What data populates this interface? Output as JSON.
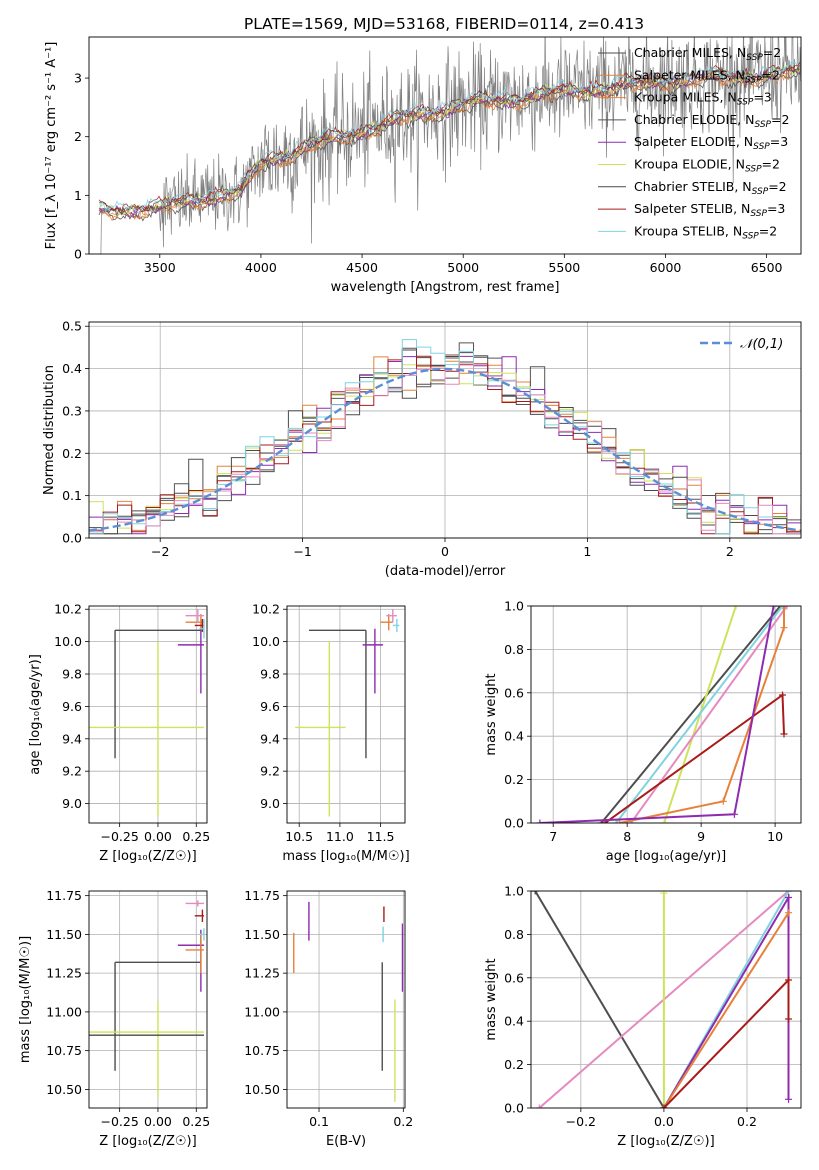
{
  "figure": {
    "title": "PLATE=1569, MJD=53168, FIBERID=0114, z=0.413"
  },
  "colors": {
    "chabrier_miles": "#4e4e4e",
    "salpeter_miles": "#e6813a",
    "kroupa_miles": "#e6813a",
    "chabrier_elodie": "#555555",
    "salpeter_elodie": "#8e2bb0",
    "kroupa_elodie": "#cde35a",
    "chabrier_stelib": "#4a4a4a",
    "salpeter_stelib": "#a91b1b",
    "kroupa_stelib": "#7fd3e0",
    "data": "#808080",
    "normal": "#5a8fd6",
    "pink": "#e58ac0"
  },
  "chart_data": [
    {
      "id": "spectrum",
      "type": "line",
      "xlabel": "wavelength [Angstrom, rest frame]",
      "ylabel": "Flux [f_λ 10⁻¹⁷ erg cm⁻² s⁻¹ A⁻¹]",
      "xlim": [
        3150,
        6670
      ],
      "ylim": [
        0,
        3.7
      ],
      "xticks": [
        3500,
        4000,
        4500,
        5000,
        5500,
        6000,
        6500
      ],
      "yticks": [
        0,
        1,
        2,
        3
      ],
      "grid": false,
      "legend_position": "right",
      "legend": [
        {
          "label": "Chabrier MILES, N_SSP=2",
          "text": "Chabrier MILES, N",
          "sub": "SSP",
          "tail": "=2",
          "color_key": "chabrier_miles"
        },
        {
          "label": "Salpeter MILES, N_SSP=2",
          "text": "Salpeter MILES, N",
          "sub": "SSP",
          "tail": "=2",
          "color_key": "salpeter_miles"
        },
        {
          "label": "Kroupa MILES, N_SSP=3",
          "text": "Kroupa MILES, N",
          "sub": "SSP",
          "tail": "=3",
          "color_key": "kroupa_miles"
        },
        {
          "label": "Chabrier ELODIE, N_SSP=2",
          "text": "Chabrier ELODIE, N",
          "sub": "SSP",
          "tail": "=2",
          "color_key": "chabrier_elodie"
        },
        {
          "label": "Salpeter ELODIE, N_SSP=3",
          "text": "Salpeter ELODIE, N",
          "sub": "SSP",
          "tail": "=3",
          "color_key": "salpeter_elodie"
        },
        {
          "label": "Kroupa ELODIE, N_SSP=2",
          "text": "Kroupa ELODIE, N",
          "sub": "SSP",
          "tail": "=2",
          "color_key": "kroupa_elodie"
        },
        {
          "label": "Chabrier STELIB, N_SSP=2",
          "text": "Chabrier STELIB, N",
          "sub": "SSP",
          "tail": "=2",
          "color_key": "chabrier_stelib"
        },
        {
          "label": "Salpeter STELIB, N_SSP=3",
          "text": "Salpeter STELIB, N",
          "sub": "SSP",
          "tail": "=3",
          "color_key": "salpeter_stelib"
        },
        {
          "label": "Kroupa STELIB, N_SSP=2",
          "text": "Kroupa STELIB, N",
          "sub": "SSP",
          "tail": "=2",
          "color_key": "kroupa_stelib"
        }
      ],
      "continuum_model": [
        [
          3200,
          0.75
        ],
        [
          3500,
          0.78
        ],
        [
          3700,
          0.95
        ],
        [
          3900,
          1.05
        ],
        [
          4000,
          1.55
        ],
        [
          4250,
          1.85
        ],
        [
          4500,
          2.1
        ],
        [
          4750,
          2.35
        ],
        [
          5000,
          2.55
        ],
        [
          5250,
          2.65
        ],
        [
          5500,
          2.75
        ],
        [
          5750,
          2.85
        ],
        [
          6000,
          2.95
        ],
        [
          6250,
          3.0
        ],
        [
          6500,
          3.05
        ],
        [
          6670,
          3.1
        ]
      ]
    },
    {
      "id": "residual_histogram",
      "type": "histogram",
      "xlabel": "(data-model)/error",
      "ylabel": "Normed distribution",
      "xlim": [
        -2.5,
        2.5
      ],
      "ylim": [
        0,
        0.51
      ],
      "xticks": [
        -2,
        -1,
        0,
        1,
        2
      ],
      "yticks": [
        0,
        0.1,
        0.2,
        0.3,
        0.4,
        0.5
      ],
      "grid": true,
      "legend_position": "top-right",
      "legend": [
        {
          "label": "𝒩(0,1)",
          "color_key": "normal"
        }
      ],
      "bin_width": 0.1,
      "note_shape": "normal-like"
    },
    {
      "id": "age_vs_Z",
      "type": "errorbar",
      "xlabel": "Z [log₁₀(Z/Z☉)]",
      "ylabel": "age  [log₁₀(age/yr)]",
      "xlim": [
        -0.45,
        0.32
      ],
      "ylim": [
        8.88,
        10.22
      ],
      "xticks": [
        -0.25,
        0.0,
        0.25
      ],
      "yticks": [
        9.0,
        9.2,
        9.4,
        9.6,
        9.8,
        10.0,
        10.2
      ],
      "points": [
        {
          "x": -0.28,
          "y": 10.07,
          "xerr": [
            0,
            0.56
          ],
          "yerr": [
            0.79,
            0
          ],
          "color_key": "chabrier_miles"
        },
        {
          "x": 0.0,
          "y": 9.47,
          "xerr": [
            0.45,
            0.3
          ],
          "yerr": [
            0.55,
            0.53
          ],
          "color_key": "kroupa_elodie"
        },
        {
          "x": 0.28,
          "y": 10.12,
          "xerr": [
            0.1,
            0.02
          ],
          "yerr": [
            0.05,
            0.05
          ],
          "color_key": "salpeter_miles"
        },
        {
          "x": 0.26,
          "y": 10.16,
          "xerr": [
            0.08,
            0.04
          ],
          "yerr": [
            0.04,
            0.04
          ],
          "color_key": "pink"
        },
        {
          "x": 0.28,
          "y": 9.98,
          "xerr": [
            0.15,
            0.02
          ],
          "yerr": [
            0.3,
            0.1
          ],
          "color_key": "salpeter_elodie"
        },
        {
          "x": 0.29,
          "y": 10.1,
          "xerr": [
            0.05,
            0.01
          ],
          "yerr": [
            0.04,
            0.04
          ],
          "color_key": "salpeter_stelib"
        },
        {
          "x": 0.3,
          "y": 10.08,
          "xerr": [
            0.03,
            0.0
          ],
          "yerr": [
            0.06,
            0.06
          ],
          "color_key": "kroupa_stelib"
        }
      ]
    },
    {
      "id": "age_vs_mass",
      "type": "errorbar",
      "xlabel": "mass [log₁₀(M/M☉)]",
      "ylabel": "",
      "xlim": [
        10.35,
        11.8
      ],
      "ylim": [
        8.88,
        10.22
      ],
      "xticks": [
        10.5,
        11.0,
        11.5
      ],
      "yticks": [
        9.0,
        9.2,
        9.4,
        9.6,
        9.8,
        10.0,
        10.2
      ],
      "points": [
        {
          "x": 11.32,
          "y": 10.07,
          "xerr": [
            0.7,
            0
          ],
          "yerr": [
            0.79,
            0
          ],
          "color_key": "chabrier_miles"
        },
        {
          "x": 10.87,
          "y": 9.47,
          "xerr": [
            0.42,
            0.2
          ],
          "yerr": [
            0.55,
            0.53
          ],
          "color_key": "kroupa_elodie"
        },
        {
          "x": 11.43,
          "y": 9.98,
          "xerr": [
            0.15,
            0.1
          ],
          "yerr": [
            0.3,
            0.1
          ],
          "color_key": "salpeter_elodie"
        },
        {
          "x": 11.6,
          "y": 10.12,
          "xerr": [
            0.1,
            0.05
          ],
          "yerr": [
            0.05,
            0.05
          ],
          "color_key": "salpeter_miles"
        },
        {
          "x": 11.65,
          "y": 10.16,
          "xerr": [
            0.08,
            0.05
          ],
          "yerr": [
            0.04,
            0.04
          ],
          "color_key": "pink"
        },
        {
          "x": 11.7,
          "y": 10.1,
          "xerr": [
            0.05,
            0.03
          ],
          "yerr": [
            0.04,
            0.04
          ],
          "color_key": "kroupa_stelib"
        }
      ]
    },
    {
      "id": "mass_weight_vs_age",
      "type": "line",
      "xlabel": "age  [log₁₀(age/yr)]",
      "ylabel": "mass weight",
      "xlim": [
        6.7,
        10.35
      ],
      "ylim": [
        0,
        1.0
      ],
      "xticks": [
        7,
        8,
        9,
        10
      ],
      "yticks": [
        0.0,
        0.2,
        0.4,
        0.6,
        0.8,
        1.0
      ],
      "grid": true,
      "series": [
        {
          "color_key": "chabrier_miles",
          "x": [
            7.65,
            10.07
          ],
          "y": [
            0.0,
            1.0
          ]
        },
        {
          "color_key": "kroupa_elodie",
          "x": [
            8.5,
            9.47
          ],
          "y": [
            0.0,
            1.0
          ]
        },
        {
          "color_key": "kroupa_stelib",
          "x": [
            7.85,
            10.1
          ],
          "y": [
            0.0,
            1.0
          ]
        },
        {
          "color_key": "pink",
          "x": [
            8.05,
            10.16
          ],
          "y": [
            0.0,
            1.0
          ]
        },
        {
          "color_key": "salpeter_miles",
          "x": [
            7.9,
            9.3,
            10.12,
            10.12
          ],
          "y": [
            0.0,
            0.1,
            0.9,
            1.0
          ]
        },
        {
          "color_key": "salpeter_stelib",
          "x": [
            7.7,
            10.1,
            10.12
          ],
          "y": [
            0.0,
            0.59,
            0.41
          ]
        },
        {
          "color_key": "salpeter_elodie",
          "x": [
            6.82,
            9.45,
            9.98
          ],
          "y": [
            0.0,
            0.04,
            1.0
          ]
        }
      ]
    },
    {
      "id": "mass_vs_Z",
      "type": "errorbar",
      "xlabel": "Z [log₁₀(Z/Z☉)]",
      "ylabel": "mass [log₁₀(M/M☉)]",
      "xlim": [
        -0.45,
        0.32
      ],
      "ylim": [
        10.38,
        11.78
      ],
      "xticks": [
        -0.25,
        0.0,
        0.25
      ],
      "yticks": [
        10.5,
        10.75,
        11.0,
        11.25,
        11.5,
        11.75
      ],
      "points": [
        {
          "x": -0.28,
          "y": 11.32,
          "xerr": [
            0,
            0.56
          ],
          "yerr": [
            0.7,
            0
          ],
          "color_key": "chabrier_miles"
        },
        {
          "x": 0.0,
          "y": 10.87,
          "xerr": [
            0.45,
            0.3
          ],
          "yerr": [
            0.42,
            0.2
          ],
          "color_key": "kroupa_elodie"
        },
        {
          "x": 0.0,
          "y": 10.85,
          "xerr": [
            0.45,
            0.3
          ],
          "yerr": [
            0.0,
            0.0
          ],
          "color_key": "chabrier_stelib"
        },
        {
          "x": 0.28,
          "y": 11.43,
          "xerr": [
            0.15,
            0.02
          ],
          "yerr": [
            0.3,
            0.1
          ],
          "color_key": "salpeter_elodie"
        },
        {
          "x": 0.28,
          "y": 11.4,
          "xerr": [
            0.1,
            0.02
          ],
          "yerr": [
            0.15,
            0.1
          ],
          "color_key": "salpeter_miles"
        },
        {
          "x": 0.26,
          "y": 11.7,
          "xerr": [
            0.08,
            0.04
          ],
          "yerr": [
            0.02,
            0.02
          ],
          "color_key": "pink"
        },
        {
          "x": 0.29,
          "y": 11.62,
          "xerr": [
            0.05,
            0.01
          ],
          "yerr": [
            0.04,
            0.04
          ],
          "color_key": "salpeter_stelib"
        },
        {
          "x": 0.3,
          "y": 11.5,
          "xerr": [
            0.03,
            0.0
          ],
          "yerr": [
            0.04,
            0.04
          ],
          "color_key": "kroupa_stelib"
        }
      ]
    },
    {
      "id": "mass_vs_EBV",
      "type": "errorbar",
      "xlabel": "E(B-V)",
      "ylabel": "",
      "xlim": [
        0.062,
        0.202
      ],
      "ylim": [
        10.38,
        11.78
      ],
      "xticks": [
        0.1,
        0.2
      ],
      "yticks": [
        10.5,
        10.75,
        11.0,
        11.25,
        11.5,
        11.75
      ],
      "points": [
        {
          "x": 0.07,
          "y": 11.38,
          "yerr": [
            0.13,
            0.13
          ],
          "color_key": "salpeter_miles"
        },
        {
          "x": 0.088,
          "y": 11.58,
          "yerr": [
            0.12,
            0.13
          ],
          "color_key": "salpeter_elodie"
        },
        {
          "x": 0.175,
          "y": 10.97,
          "yerr": [
            0.35,
            0.35
          ],
          "color_key": "chabrier_miles"
        },
        {
          "x": 0.176,
          "y": 11.5,
          "yerr": [
            0.05,
            0.05
          ],
          "color_key": "kroupa_stelib"
        },
        {
          "x": 0.177,
          "y": 11.63,
          "yerr": [
            0.05,
            0.05
          ],
          "color_key": "salpeter_stelib"
        },
        {
          "x": 0.19,
          "y": 10.75,
          "yerr": [
            0.33,
            0.33
          ],
          "color_key": "kroupa_elodie"
        },
        {
          "x": 0.199,
          "y": 11.35,
          "yerr": [
            0.22,
            0.22
          ],
          "color_key": "salpeter_elodie"
        }
      ]
    },
    {
      "id": "mass_weight_vs_Z",
      "type": "line",
      "xlabel": "Z [log₁₀(Z/Z☉)]",
      "ylabel": "mass weight",
      "xlim": [
        -0.32,
        0.33
      ],
      "ylim": [
        0,
        1.0
      ],
      "xticks": [
        -0.2,
        0.0,
        0.2
      ],
      "yticks": [
        0.0,
        0.2,
        0.4,
        0.6,
        0.8,
        1.0
      ],
      "grid": true,
      "series": [
        {
          "color_key": "chabrier_miles",
          "x": [
            -0.31,
            0.0
          ],
          "y": [
            1.0,
            0.0
          ]
        },
        {
          "color_key": "pink",
          "x": [
            -0.3,
            0.3
          ],
          "y": [
            0.0,
            1.0
          ]
        },
        {
          "color_key": "kroupa_elodie",
          "x": [
            0.0,
            0.0
          ],
          "y": [
            0.0,
            0.99
          ]
        },
        {
          "color_key": "kroupa_stelib",
          "x": [
            0.0,
            0.3
          ],
          "y": [
            0.0,
            1.0
          ]
        },
        {
          "color_key": "salpeter_elodie",
          "x": [
            0.0,
            0.3,
            0.3
          ],
          "y": [
            0.0,
            0.97,
            0.04
          ]
        },
        {
          "color_key": "salpeter_miles",
          "x": [
            0.0,
            0.3
          ],
          "y": [
            0.0,
            0.9
          ]
        },
        {
          "color_key": "salpeter_stelib",
          "x": [
            0.0,
            0.3,
            0.3
          ],
          "y": [
            0.0,
            0.59,
            0.41
          ]
        }
      ]
    }
  ]
}
